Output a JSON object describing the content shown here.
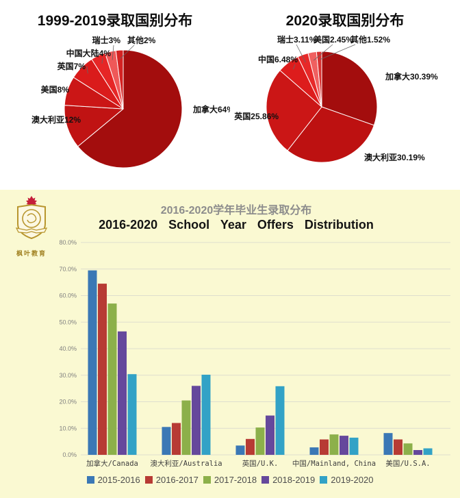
{
  "logo": {
    "text": "枫叶教育"
  },
  "colors": {
    "section_background": "#FAF9D2",
    "pie_dark_red": "#A30D0D",
    "title_cn_gray": "#8C8C8C",
    "title_en_black": "#141414"
  },
  "chart_data": [
    {
      "type": "pie",
      "title": "1999-2019录取国别分布",
      "labels": [
        "加拿大",
        "澳大利亚",
        "美国",
        "英国",
        "中国大陆",
        "瑞士",
        "其他"
      ],
      "values": [
        64,
        12,
        8,
        7,
        4,
        3,
        2
      ],
      "display_labels": [
        "加拿大64%",
        "澳大利亚12%",
        "美国8%",
        "英国7%",
        "中国大陆4%",
        "瑞士3%",
        "其他2%"
      ],
      "colors": [
        "#A30D0D",
        "#C01313",
        "#CB1616",
        "#DA1B1B",
        "#E62626",
        "#EF5858",
        "#D42222"
      ],
      "start_angle_deg": 0,
      "direction": "clockwise",
      "units": "%"
    },
    {
      "type": "pie",
      "title": "2020录取国别分布",
      "labels": [
        "加拿大",
        "澳大利亚",
        "英国",
        "中国",
        "瑞士",
        "美国",
        "其他"
      ],
      "values": [
        30.39,
        30.19,
        25.86,
        6.48,
        3.11,
        2.45,
        1.52
      ],
      "display_labels": [
        "加拿大30.39%",
        "澳大利亚30.19%",
        "英国25.86%",
        "中国6.48%",
        "瑞士3.11%",
        "美国2.45%",
        "其他1.52%"
      ],
      "colors": [
        "#A30D0D",
        "#BD1111",
        "#CB1616",
        "#DD1C1C",
        "#E72929",
        "#F06060",
        "#D83030"
      ],
      "start_angle_deg": 0,
      "direction": "clockwise",
      "units": "%"
    },
    {
      "type": "bar",
      "title_cn": "2016-2020学年毕业生录取分布",
      "title_en": "2016-2020 School Year Offers Distribution",
      "categories": [
        "加拿大/Canada",
        "澳大利亚/Australia",
        "英国/U.K.",
        "中国/Mainland, China",
        "美国/U.S.A."
      ],
      "series": [
        {
          "name": "2015-2016",
          "color": "#3B78B5",
          "values": [
            69.5,
            10.5,
            3.5,
            2.8,
            8.2
          ]
        },
        {
          "name": "2016-2017",
          "color": "#B73B34",
          "values": [
            64.5,
            12.0,
            6.0,
            5.8,
            5.8
          ]
        },
        {
          "name": "2017-2018",
          "color": "#8CB04A",
          "values": [
            57.0,
            20.5,
            10.3,
            7.7,
            4.3
          ]
        },
        {
          "name": "2018-2019",
          "color": "#65489C",
          "values": [
            46.5,
            26.0,
            14.8,
            7.2,
            1.8
          ]
        },
        {
          "name": "2019-2020",
          "color": "#32A2C6",
          "values": [
            30.39,
            30.19,
            25.86,
            6.48,
            2.45
          ]
        }
      ],
      "ylim": [
        0,
        80
      ],
      "ytick_step": 10,
      "ytick_labels": [
        "0.0%",
        "10.0%",
        "20.0%",
        "30.0%",
        "40.0%",
        "50.0%",
        "60.0%",
        "70.0%",
        "80.0%"
      ],
      "grid": true,
      "legend_position": "bottom"
    }
  ]
}
